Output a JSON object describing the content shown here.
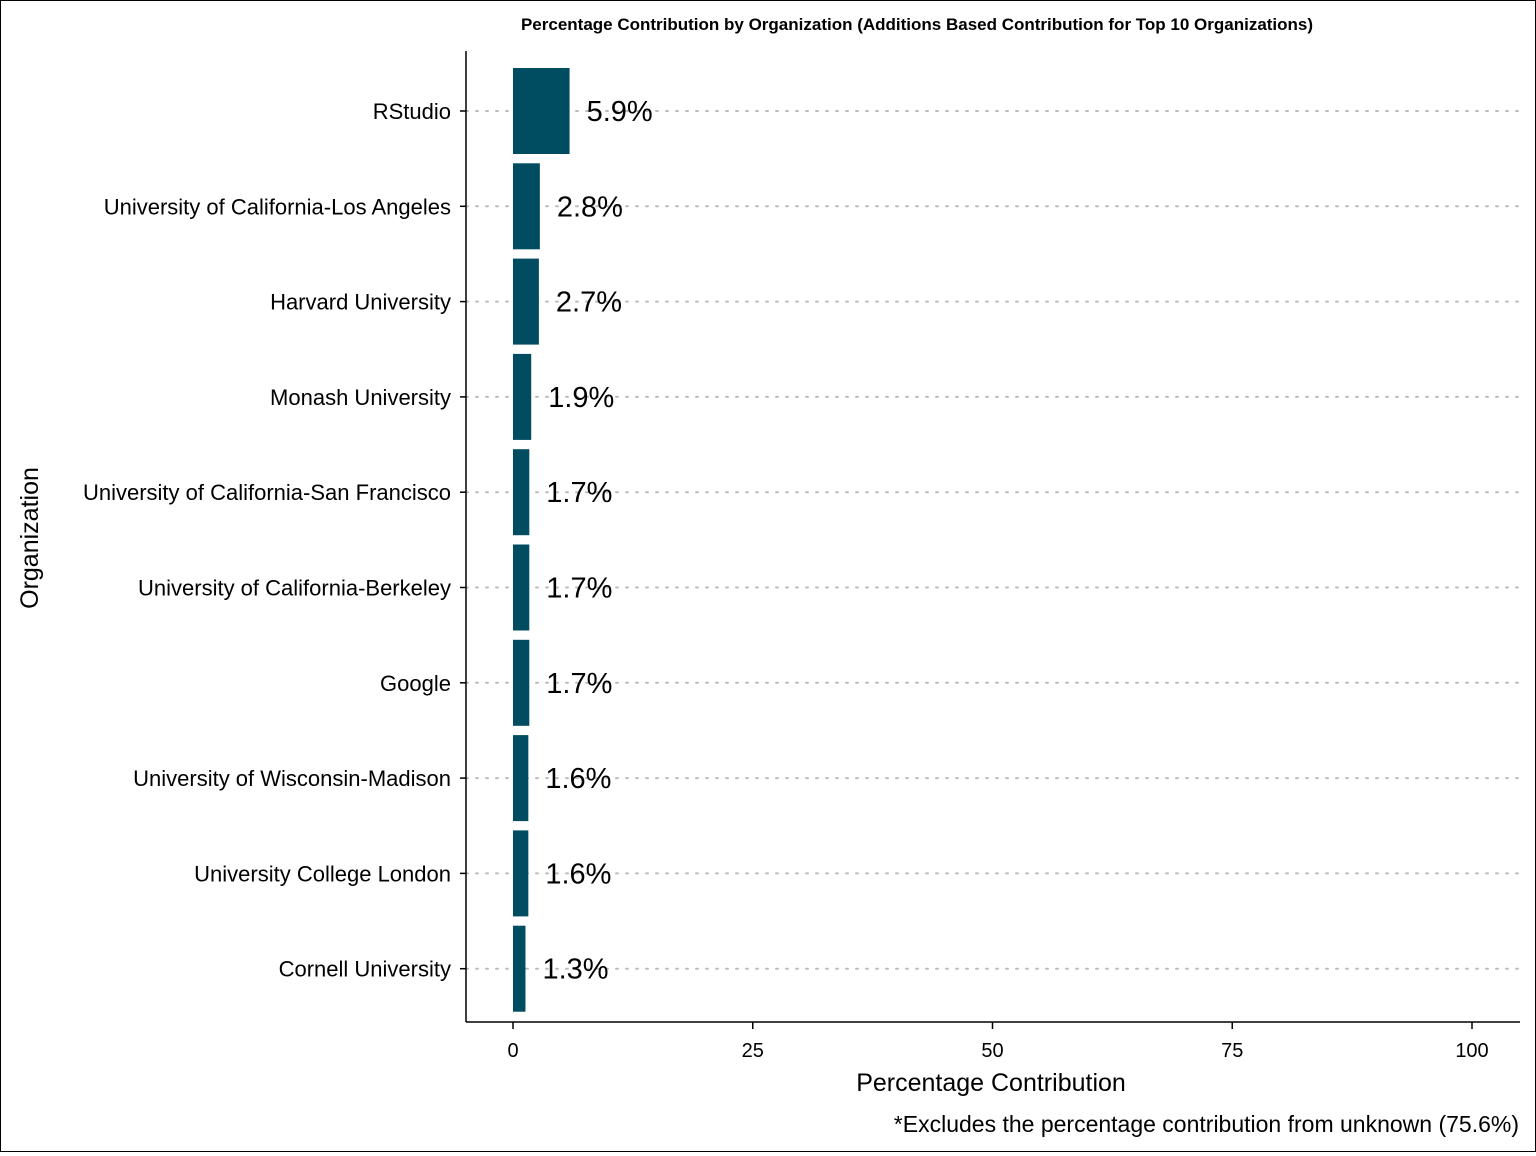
{
  "chart_data": {
    "type": "bar",
    "orientation": "horizontal",
    "title": "Percentage Contribution by Organization (Additions Based Contribution for Top 10 Organizations)",
    "xlabel": "Percentage Contribution",
    "ylabel": "Organization",
    "caption": "*Excludes the percentage contribution from unknown (75.6%)",
    "categories": [
      "RStudio",
      "University of California-Los Angeles",
      "Harvard University",
      "Monash University",
      "University of California-San Francisco",
      "University of California-Berkeley",
      "Google",
      "University of Wisconsin-Madison",
      "University College London",
      "Cornell University"
    ],
    "values": [
      5.9,
      2.8,
      2.7,
      1.9,
      1.7,
      1.7,
      1.7,
      1.6,
      1.6,
      1.3
    ],
    "value_labels": [
      "5.9%",
      "2.8%",
      "2.7%",
      "1.9%",
      "1.7%",
      "1.7%",
      "1.7%",
      "1.6%",
      "1.6%",
      "1.3%"
    ],
    "xlim": [
      0,
      100
    ],
    "xticks": [
      0,
      25,
      50,
      75,
      100
    ],
    "bar_color": "#004D61",
    "gridline_color": "#BDBDBD",
    "grid": "major y, dotted"
  }
}
